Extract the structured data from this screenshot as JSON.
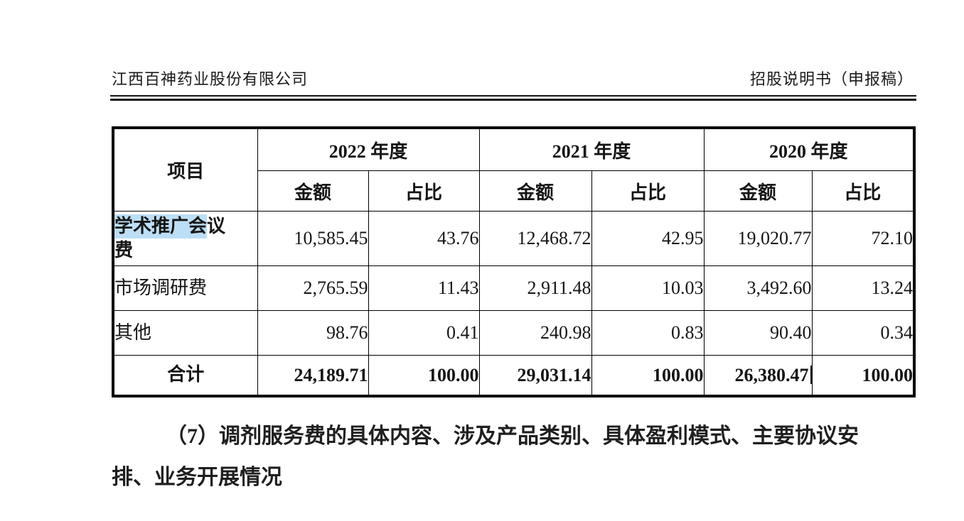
{
  "header": {
    "company": "江西百神药业股份有限公司",
    "doc_title": "招股说明书（申报稿）"
  },
  "table": {
    "item_col_header": "项目",
    "year_groups": [
      {
        "label": "2022 年度"
      },
      {
        "label": "2021 年度"
      },
      {
        "label": "2020 年度"
      }
    ],
    "sub_col_headers": [
      "金额",
      "占比"
    ],
    "rows": [
      {
        "label": "学术推广会议费",
        "label_parts": [
          {
            "text": "学术推广会",
            "highlight": true
          },
          {
            "text": "议",
            "highlight": false,
            "break_after": true
          },
          {
            "text": "费",
            "highlight": false
          }
        ],
        "bold_label": true,
        "bold_values": false,
        "label_align": "left",
        "values": [
          "10,585.45",
          "43.76",
          "12,468.72",
          "42.95",
          "19,020.77",
          "72.10"
        ]
      },
      {
        "label": "市场调研费",
        "label_parts": [
          {
            "text": "市场调研费",
            "highlight": false
          }
        ],
        "bold_label": false,
        "bold_values": false,
        "label_align": "left",
        "values": [
          "2,765.59",
          "11.43",
          "2,911.48",
          "10.03",
          "3,492.60",
          "13.24"
        ]
      },
      {
        "label": "其他",
        "label_parts": [
          {
            "text": "其他",
            "highlight": false
          }
        ],
        "bold_label": false,
        "bold_values": false,
        "label_align": "left",
        "values": [
          "98.76",
          "0.41",
          "240.98",
          "0.83",
          "90.40",
          "0.34"
        ]
      },
      {
        "label": "合计",
        "label_parts": [
          {
            "text": "合计",
            "highlight": false
          }
        ],
        "bold_label": true,
        "bold_values": true,
        "label_align": "center",
        "caret_after_value_index": 4,
        "values": [
          "24,189.71",
          "100.00",
          "29,031.14",
          "100.00",
          "26,380.47",
          "100.00"
        ]
      }
    ]
  },
  "paragraph": {
    "line1": "（7）调剂服务费的具体内容、涉及产品类别、具体盈利模式、主要协议安",
    "line2": "排、业务开展情况"
  },
  "colors": {
    "selection_highlight": "#bcdef6",
    "text": "#1a1a1a",
    "border": "#000000"
  }
}
